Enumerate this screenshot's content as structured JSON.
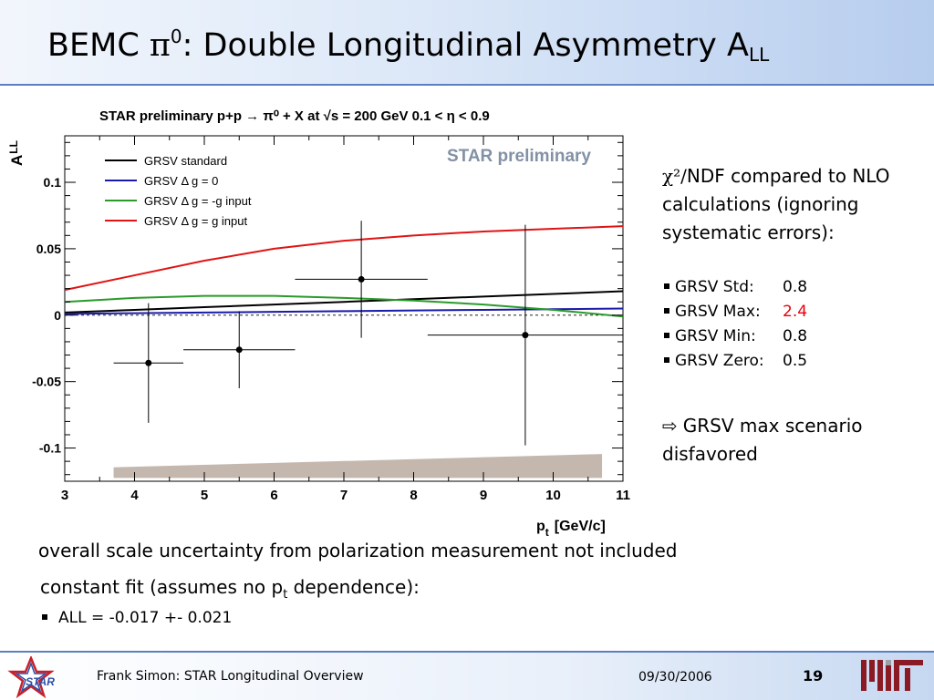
{
  "title": {
    "prefix": "BEMC ",
    "greek": "π",
    "sup": "0",
    "middle": ": Double Longitudinal Asymmetry A",
    "sub": "LL"
  },
  "chart_data": {
    "type": "scatter",
    "title": "STAR preliminary p+p → π⁰ + X at √s = 200 GeV 0.1 < η < 0.9",
    "watermark": "STAR preliminary",
    "xlabel": "p",
    "xlabel_sub": "t",
    "xlabel_unit": "[GeV/c]",
    "ylabel": "A",
    "ylabel_sub": "LL",
    "xlim": [
      3,
      11
    ],
    "ylim": [
      -0.125,
      0.135
    ],
    "xticks": [
      3,
      4,
      5,
      6,
      7,
      8,
      9,
      10,
      11
    ],
    "yticks": [
      -0.1,
      -0.05,
      0,
      0.05,
      0.1
    ],
    "ytick_labels": [
      "-0.1",
      "-0.05",
      "0",
      "0.05",
      "0.1"
    ],
    "zero_line": "dashed",
    "legend_position": "top-left",
    "series": [
      {
        "name": "data",
        "color": "#000000",
        "points": [
          {
            "x": 4.2,
            "y": -0.036,
            "xerr_low": 0.5,
            "xerr_high": 0.5,
            "yerr": 0.045
          },
          {
            "x": 5.5,
            "y": -0.026,
            "xerr_low": 0.8,
            "xerr_high": 0.8,
            "yerr": 0.029
          },
          {
            "x": 7.25,
            "y": 0.027,
            "xerr_low": 0.95,
            "xerr_high": 0.95,
            "yerr": 0.044
          },
          {
            "x": 9.6,
            "y": -0.015,
            "xerr_low": 1.4,
            "xerr_high": 1.4,
            "yerr": 0.083
          }
        ]
      }
    ],
    "curves": [
      {
        "name": "GRSV standard",
        "color": "#000000",
        "x": [
          3,
          4,
          5,
          6,
          7,
          8,
          9,
          10,
          11
        ],
        "y": [
          0.002,
          0.004,
          0.006,
          0.008,
          0.01,
          0.012,
          0.014,
          0.016,
          0.018
        ]
      },
      {
        "name": "GRSV Δ g = 0",
        "color": "#1a1aaa",
        "x": [
          3,
          4,
          5,
          6,
          7,
          8,
          9,
          10,
          11
        ],
        "y": [
          0.001,
          0.0015,
          0.002,
          0.0025,
          0.003,
          0.0035,
          0.004,
          0.0045,
          0.005
        ]
      },
      {
        "name": "GRSV Δ g = -g input",
        "color": "#2a9a2a",
        "x": [
          3,
          4,
          5,
          6,
          7,
          8,
          9,
          10,
          11
        ],
        "y": [
          0.01,
          0.013,
          0.0145,
          0.0145,
          0.013,
          0.011,
          0.008,
          0.004,
          -0.001
        ]
      },
      {
        "name": "GRSV Δ g = g input",
        "color": "#e01414",
        "x": [
          3,
          4,
          5,
          6,
          7,
          8,
          9,
          10,
          11
        ],
        "y": [
          0.019,
          0.03,
          0.041,
          0.05,
          0.056,
          0.06,
          0.063,
          0.065,
          0.067
        ]
      }
    ],
    "systematic_band": {
      "color": "#c4b8ae",
      "x": [
        3.7,
        10.7
      ],
      "upper": [
        -0.1145,
        -0.1045
      ],
      "lower": [
        -0.1225,
        -0.1225
      ]
    }
  },
  "side": {
    "heading_greek": "χ²/",
    "heading_rest": "NDF compared to NLO calculations (ignoring systematic errors):",
    "items": [
      {
        "label": "GRSV Std:",
        "value": "0.8",
        "highlight": false
      },
      {
        "label": "GRSV Max:",
        "value": "2.4",
        "highlight": true
      },
      {
        "label": "GRSV Min:",
        "value": "0.8",
        "highlight": false
      },
      {
        "label": "GRSV Zero:",
        "value": "0.5",
        "highlight": false
      }
    ],
    "conclusion_arrow": "⇨",
    "conclusion": "GRSV max scenario disfavored"
  },
  "note": "overall scale uncertainty from polarization measurement not included",
  "fit": {
    "heading_pre": "constant fit (assumes no p",
    "heading_sub": "t",
    "heading_post": " dependence):",
    "item": "ALL = -0.017 +- 0.021"
  },
  "footer": {
    "author": "Frank Simon: STAR Longitudinal Overview",
    "date": "09/30/2006",
    "page": "19",
    "star_logo_text": "STAR"
  },
  "colors": {
    "highlight": "#e8000b",
    "accent_rule": "#5b7fc0",
    "mit_logo": "#8a1b24"
  }
}
